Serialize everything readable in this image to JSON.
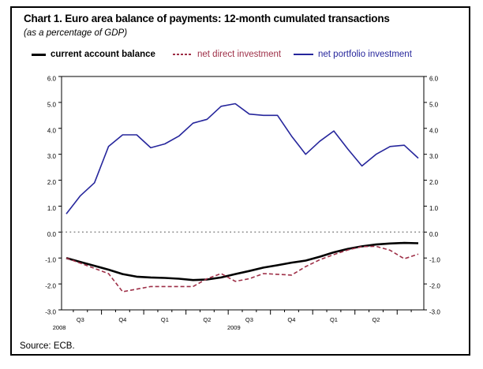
{
  "chart_data": {
    "type": "line",
    "title": "Chart 1. Euro area balance of payments: 12-month cumulated transactions",
    "subtitle": "(as a percentage of GDP)",
    "source": "Source: ECB.",
    "frequency": "monthly",
    "n_points": 26,
    "ylim": [
      -3.0,
      6.0
    ],
    "ytick_labels": [
      "6.0",
      "5.0",
      "4.0",
      "3.0",
      "2.0",
      "1.0",
      "0.0",
      "-1.0",
      "-2.0",
      "-3.0"
    ],
    "xtick_quarter_labels": [
      "Q3",
      "Q4",
      "Q1",
      "Q2",
      "Q3",
      "Q4",
      "Q1",
      "Q2"
    ],
    "xtick_year_labels": [
      "2008",
      "2009"
    ],
    "grid": "off",
    "legend_position": "top",
    "zero_line": {
      "value": 0.0,
      "style": "dotted",
      "color": "#808080"
    },
    "series": [
      {
        "name": "current account balance",
        "color": "#000000",
        "style": "solid",
        "width": 2.6,
        "values": [
          -1.0,
          -1.15,
          -1.3,
          -1.45,
          -1.62,
          -1.72,
          -1.75,
          -1.77,
          -1.8,
          -1.85,
          -1.83,
          -1.75,
          -1.62,
          -1.5,
          -1.37,
          -1.28,
          -1.18,
          -1.1,
          -0.95,
          -0.78,
          -0.65,
          -0.55,
          -0.48,
          -0.44,
          -0.42,
          -0.43
        ]
      },
      {
        "name": "net direct investment",
        "color": "#9e2f47",
        "style": "dashed",
        "width": 1.6,
        "values": [
          -1.0,
          -1.2,
          -1.4,
          -1.6,
          -2.3,
          -2.2,
          -2.1,
          -2.1,
          -2.1,
          -2.1,
          -1.8,
          -1.6,
          -1.9,
          -1.8,
          -1.6,
          -1.63,
          -1.66,
          -1.33,
          -1.07,
          -0.87,
          -0.69,
          -0.56,
          -0.55,
          -0.7,
          -1.03,
          -0.85
        ]
      },
      {
        "name": "net portfolio investment",
        "color": "#26269c",
        "style": "solid",
        "width": 1.6,
        "values": [
          0.7,
          1.4,
          1.9,
          3.3,
          3.75,
          3.75,
          3.25,
          3.4,
          3.7,
          4.2,
          4.35,
          4.85,
          4.95,
          4.55,
          4.5,
          4.5,
          3.7,
          3.0,
          3.5,
          3.9,
          3.2,
          2.55,
          3.0,
          3.3,
          3.35,
          2.85
        ]
      }
    ]
  }
}
